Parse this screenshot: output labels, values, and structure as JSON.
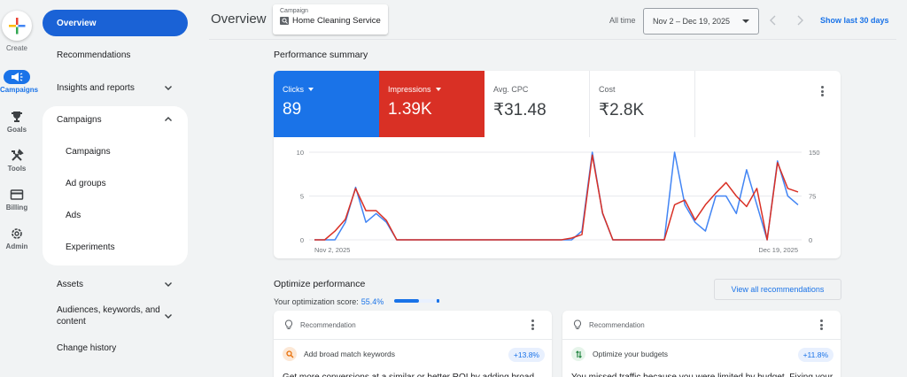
{
  "rail": {
    "create_label": "Create",
    "items": [
      {
        "label": "Campaigns",
        "icon": "megaphone-icon",
        "active": true
      },
      {
        "label": "Goals",
        "icon": "trophy-icon"
      },
      {
        "label": "Tools",
        "icon": "tools-icon"
      },
      {
        "label": "Billing",
        "icon": "credit-card-icon"
      },
      {
        "label": "Admin",
        "icon": "gear-icon"
      }
    ]
  },
  "nav": {
    "overview": "Overview",
    "recommendations": "Recommendations",
    "insights": "Insights and reports",
    "campaigns_group": "Campaigns",
    "sub": [
      "Campaigns",
      "Ad groups",
      "Ads",
      "Experiments"
    ],
    "assets": "Assets",
    "audiences": "Audiences, keywords, and content",
    "change_history": "Change history"
  },
  "header": {
    "title": "Overview",
    "campaign_label": "Campaign",
    "campaign_name": "Home Cleaning Service",
    "all_time": "All time",
    "date_range": "Nov 2 – Dec 19, 2025",
    "show_last": "Show last 30 days"
  },
  "performance": {
    "title": "Performance summary",
    "metrics": [
      {
        "label": "Clicks",
        "value": "89",
        "color": "#1a73e8"
      },
      {
        "label": "Impressions",
        "value": "1.39K",
        "color": "#d93025"
      },
      {
        "label": "Avg. CPC",
        "value": "₹31.48"
      },
      {
        "label": "Cost",
        "value": "₹2.8K"
      }
    ]
  },
  "chart_data": {
    "type": "line",
    "title": "Performance summary",
    "x_start_label": "Nov 2, 2025",
    "x_end_label": "Dec 19, 2025",
    "left_axis": {
      "label": "Clicks",
      "ticks": [
        0,
        5,
        10
      ],
      "range": [
        0,
        10
      ]
    },
    "right_axis": {
      "label": "Impressions",
      "ticks": [
        0,
        75,
        150
      ],
      "range": [
        0,
        150
      ]
    },
    "grid": true,
    "legend": "metric tiles above chart",
    "series": [
      {
        "name": "Clicks",
        "axis": "left",
        "color": "#4285f4",
        "values": [
          0,
          0,
          0,
          2,
          6,
          2,
          3,
          2,
          0,
          0,
          0,
          0,
          0,
          0,
          0,
          0,
          0,
          0,
          0,
          0,
          0,
          0,
          0,
          0,
          0,
          0,
          1,
          10,
          3,
          0,
          0,
          0,
          0,
          0,
          0,
          10,
          4,
          2,
          1,
          5,
          5,
          3,
          8,
          4,
          0,
          9,
          5,
          4
        ]
      },
      {
        "name": "Impressions",
        "axis": "right",
        "color": "#d93025",
        "values": [
          0,
          0,
          15,
          35,
          88,
          50,
          50,
          33,
          0,
          0,
          0,
          0,
          0,
          0,
          0,
          0,
          0,
          0,
          0,
          0,
          0,
          0,
          0,
          0,
          0,
          3,
          9,
          145,
          46,
          0,
          0,
          0,
          0,
          0,
          0,
          60,
          68,
          34,
          60,
          80,
          98,
          75,
          57,
          88,
          0,
          132,
          88,
          82
        ]
      }
    ]
  },
  "optimize": {
    "title": "Optimize performance",
    "score_label": "Your optimization score:",
    "score_value": "55.4%",
    "score_pct": 55.4,
    "view_all": "View all recommendations",
    "cards": [
      {
        "header": "Recommendation",
        "title": "Add broad match keywords",
        "badge": "+13.8%",
        "desc": "Get more conversions at a similar or better ROI by adding broad",
        "icon": "search-icon"
      },
      {
        "header": "Recommendation",
        "title": "Optimize your budgets",
        "badge": "+11.8%",
        "desc": "You missed traffic because you were limited by budget. Fixing your",
        "icon": "budget-arrows-icon"
      }
    ]
  }
}
